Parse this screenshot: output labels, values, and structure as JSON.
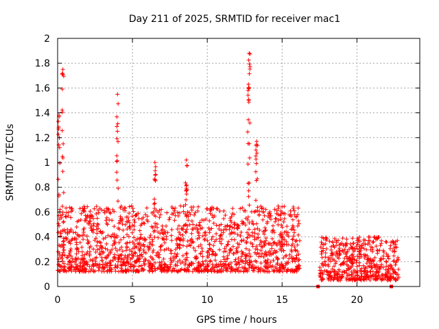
{
  "chart_data": {
    "type": "scatter",
    "title": "Day 211 of 2025, SRMTID for receiver mac1",
    "xlabel": "GPS time / hours",
    "ylabel": "SRMTID / TECUs",
    "xlim": [
      0,
      24.2
    ],
    "ylim": [
      0,
      2
    ],
    "x_ticks": [
      0,
      5,
      10,
      15,
      20
    ],
    "x_tick_labels": [
      "0",
      "5",
      "10",
      "15",
      "20"
    ],
    "y_ticks": [
      0,
      0.2,
      0.4,
      0.6,
      0.8,
      1,
      1.2,
      1.4,
      1.6,
      1.8,
      2
    ],
    "y_tick_labels": [
      "0",
      "0.2",
      "0.4",
      "0.6",
      "0.8",
      "1",
      "1.2",
      "1.4",
      "1.6",
      "1.8",
      "2"
    ],
    "grid": true,
    "marker": "+",
    "color": "#ff0000",
    "peaks": [
      {
        "x": 0.35,
        "y": 1.75
      },
      {
        "x": 0.1,
        "y": 1.38
      },
      {
        "x": 4.0,
        "y": 1.55
      },
      {
        "x": 12.8,
        "y": 1.88
      },
      {
        "x": 12.75,
        "y": 1.63
      },
      {
        "x": 6.5,
        "y": 1.0
      },
      {
        "x": 8.6,
        "y": 1.02
      },
      {
        "x": 13.3,
        "y": 1.17
      }
    ],
    "segments": [
      {
        "x_start": 0.0,
        "x_end": 16.2,
        "baseline_min": 0.12,
        "baseline_max": 0.65
      },
      {
        "x_start": 17.5,
        "x_end": 22.8,
        "baseline_min": 0.05,
        "baseline_max": 0.4
      }
    ],
    "zero_markers": [
      17.4,
      22.3
    ]
  }
}
